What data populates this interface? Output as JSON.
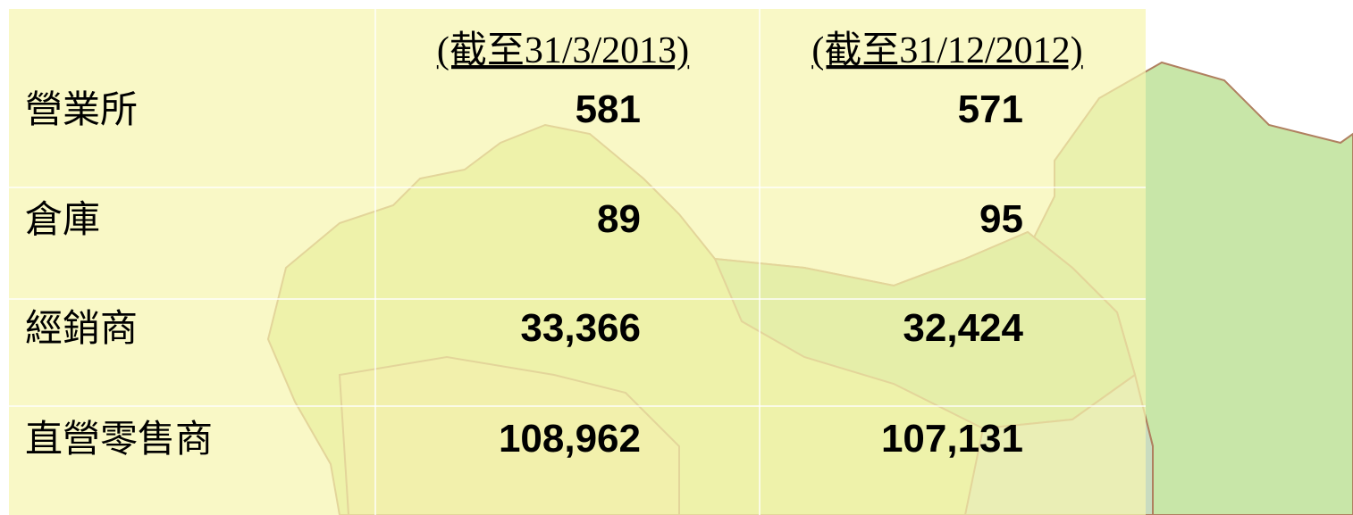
{
  "table": {
    "header": [
      "(截至31/3/2013)",
      "(截至31/12/2012)"
    ],
    "rows": [
      [
        "營業所",
        "581",
        "571"
      ],
      [
        "倉庫",
        "89",
        "95"
      ],
      [
        "經銷商",
        "33,366",
        "32,424"
      ],
      [
        "直營零售商",
        "108,962",
        "107,131"
      ]
    ]
  }
}
